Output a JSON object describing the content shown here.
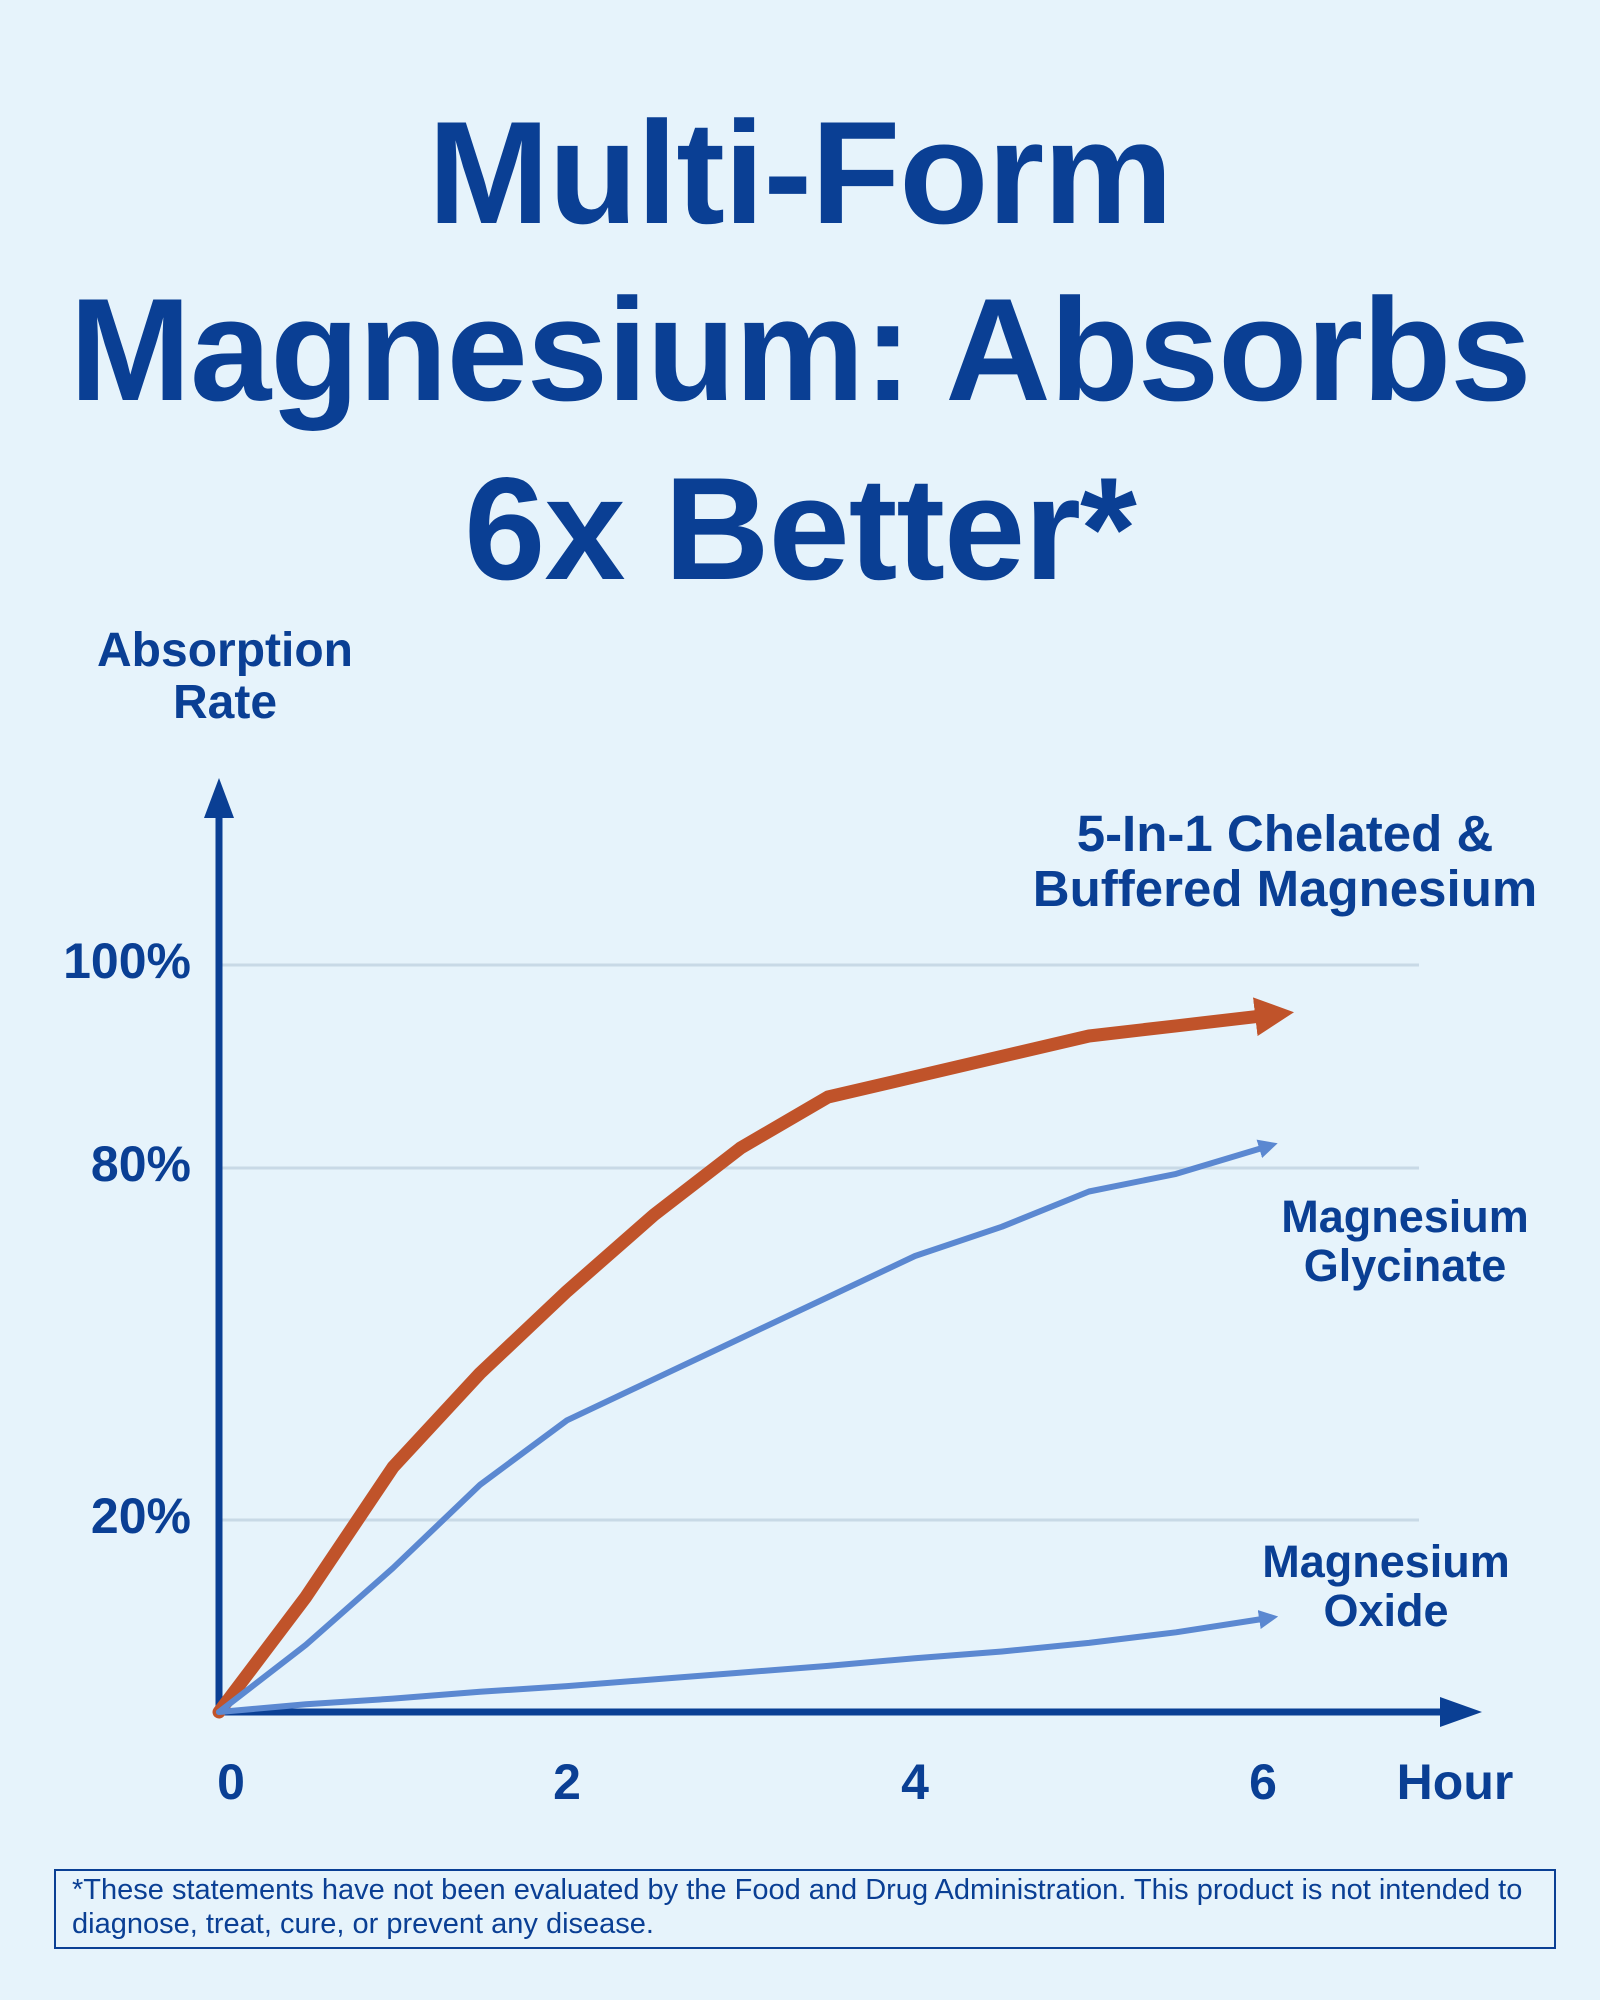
{
  "chart_data": {
    "type": "line",
    "title": [
      "Multi-Form",
      "Magnesium: Absorbs",
      "6x Better*"
    ],
    "y_label": "Absorption Rate",
    "x_label": "Hour",
    "x": [
      0,
      0.5,
      1,
      1.5,
      2,
      2.5,
      3,
      3.5,
      4,
      4.5,
      5,
      5.5,
      6
    ],
    "series": [
      {
        "name": "5-In-1 Chelated & Buffered Magnesium",
        "color": "#c0532a",
        "values": [
          0,
          12,
          29,
          45,
          59,
          72,
          82,
          87,
          89,
          91,
          93,
          94,
          95
        ]
      },
      {
        "name": "Magnesium Glycinate",
        "color": "#5b88d1",
        "values": [
          0,
          7,
          15,
          26,
          37,
          44,
          51,
          58,
          65,
          70,
          76,
          79,
          82
        ]
      },
      {
        "name": "Magnesium Oxide",
        "color": "#5b88d1",
        "values": [
          0,
          0.8,
          1.4,
          2.1,
          2.7,
          3.4,
          4.1,
          4.8,
          5.6,
          6.3,
          7.2,
          8.3,
          9.7
        ]
      }
    ],
    "xlim": [
      0,
      7.2
    ],
    "xticks": [
      0,
      2,
      4,
      6
    ],
    "ylim": [
      0,
      120
    ],
    "yticks": [
      {
        "value": 20,
        "label": "20%"
      },
      {
        "value": 80,
        "label": "80%"
      },
      {
        "value": 100,
        "label": "100%"
      }
    ],
    "grid": true,
    "footnote": "*These statements have not been evaluated by the Food and Drug Administration. This product is not intended to diagnose, treat, cure, or prevent any disease."
  }
}
